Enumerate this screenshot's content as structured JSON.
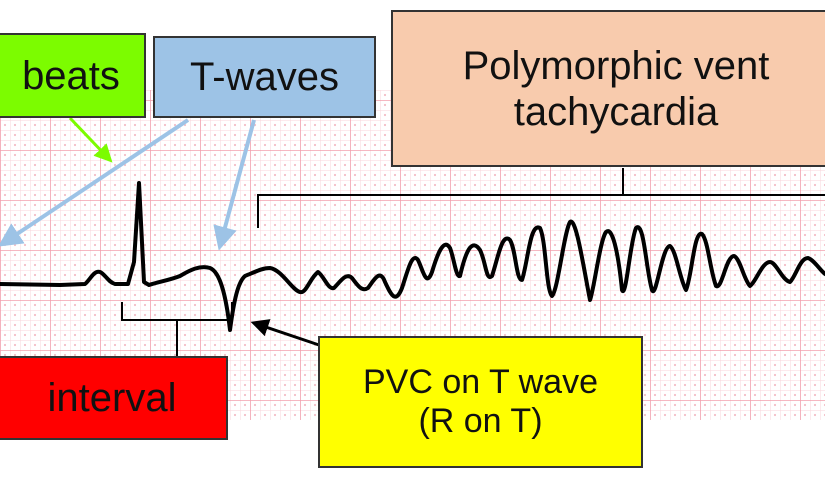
{
  "labels": {
    "beats": "beats",
    "t_waves": "T-waves",
    "pvt_line1": "Polymorphic vent",
    "pvt_line2": "tachycardia",
    "interval": "interval",
    "pvc_line1": "PVC on T wave",
    "pvc_line2": "(R on T)"
  },
  "colors": {
    "grid_major": "#f2a0ad",
    "grid_minor": "#f9d5db",
    "grid_dots": "#e98898",
    "trace": "#000000",
    "arrow_green": "#7CFC00",
    "arrow_blue": "#9DC3E6",
    "bracket": "#000000"
  }
}
